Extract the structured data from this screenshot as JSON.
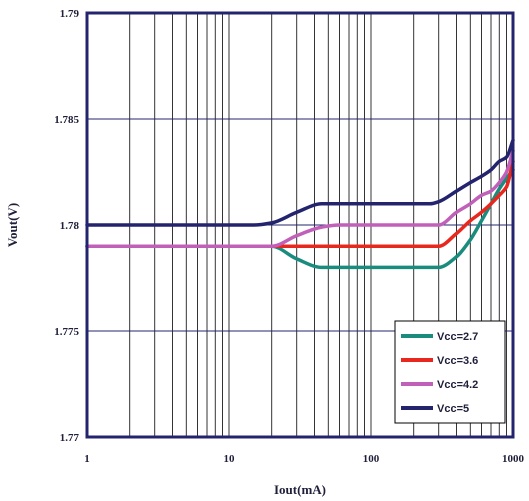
{
  "chart_data": {
    "type": "line",
    "xscale": "log",
    "xlim": [
      1,
      1000
    ],
    "ylim": [
      1.77,
      1.79
    ],
    "xlabel": "Iout(mA)",
    "ylabel": "Vout(V)",
    "x_ticks": [
      {
        "value": 1,
        "label": "1"
      },
      {
        "value": 10,
        "label": "10"
      },
      {
        "value": 100,
        "label": "100"
      },
      {
        "value": 1000,
        "label": "1000"
      }
    ],
    "y_ticks": [
      {
        "value": 1.77,
        "label": "1.77"
      },
      {
        "value": 1.775,
        "label": "1.775"
      },
      {
        "value": 1.78,
        "label": "1.78"
      },
      {
        "value": 1.785,
        "label": "1.785"
      },
      {
        "value": 1.79,
        "label": "1.79"
      }
    ],
    "grid": true,
    "legend_position": "bottom-right",
    "series": [
      {
        "name": "Vcc=2.7",
        "color": "#1a8c7e",
        "x": [
          1,
          5,
          10,
          15,
          20,
          30,
          45,
          60,
          80,
          100,
          150,
          200,
          260,
          300,
          400,
          500,
          600,
          700,
          800,
          900,
          1000
        ],
        "y": [
          1.779,
          1.779,
          1.779,
          1.779,
          1.779,
          1.7784,
          1.778,
          1.778,
          1.778,
          1.778,
          1.778,
          1.778,
          1.778,
          1.778,
          1.7785,
          1.7793,
          1.7802,
          1.781,
          1.7817,
          1.7822,
          1.7826
        ]
      },
      {
        "name": "Vcc=3.6",
        "color": "#e8281e",
        "x": [
          1,
          5,
          10,
          15,
          20,
          30,
          50,
          80,
          100,
          150,
          200,
          260,
          300,
          400,
          500,
          600,
          700,
          800,
          900,
          1000
        ],
        "y": [
          1.779,
          1.779,
          1.779,
          1.779,
          1.779,
          1.779,
          1.779,
          1.779,
          1.779,
          1.779,
          1.779,
          1.779,
          1.779,
          1.7796,
          1.7802,
          1.7806,
          1.781,
          1.7814,
          1.7818,
          1.783
        ]
      },
      {
        "name": "Vcc=4.2",
        "color": "#c060b8",
        "x": [
          1,
          5,
          10,
          15,
          20,
          30,
          45,
          60,
          80,
          100,
          150,
          200,
          260,
          300,
          400,
          500,
          600,
          700,
          800,
          900,
          1000
        ],
        "y": [
          1.779,
          1.779,
          1.779,
          1.779,
          1.779,
          1.7795,
          1.7799,
          1.78,
          1.78,
          1.78,
          1.78,
          1.78,
          1.78,
          1.78,
          1.7806,
          1.781,
          1.7814,
          1.7816,
          1.782,
          1.7825,
          1.7835
        ]
      },
      {
        "name": "Vcc=5",
        "color": "#24246e",
        "x": [
          1,
          5,
          10,
          12,
          15,
          20,
          30,
          45,
          60,
          80,
          100,
          150,
          200,
          260,
          300,
          400,
          500,
          600,
          700,
          800,
          900,
          1000
        ],
        "y": [
          1.78,
          1.78,
          1.78,
          1.78,
          1.78,
          1.7801,
          1.7806,
          1.781,
          1.781,
          1.781,
          1.781,
          1.781,
          1.781,
          1.781,
          1.7811,
          1.7816,
          1.782,
          1.7823,
          1.7826,
          1.783,
          1.7832,
          1.784
        ]
      }
    ]
  }
}
